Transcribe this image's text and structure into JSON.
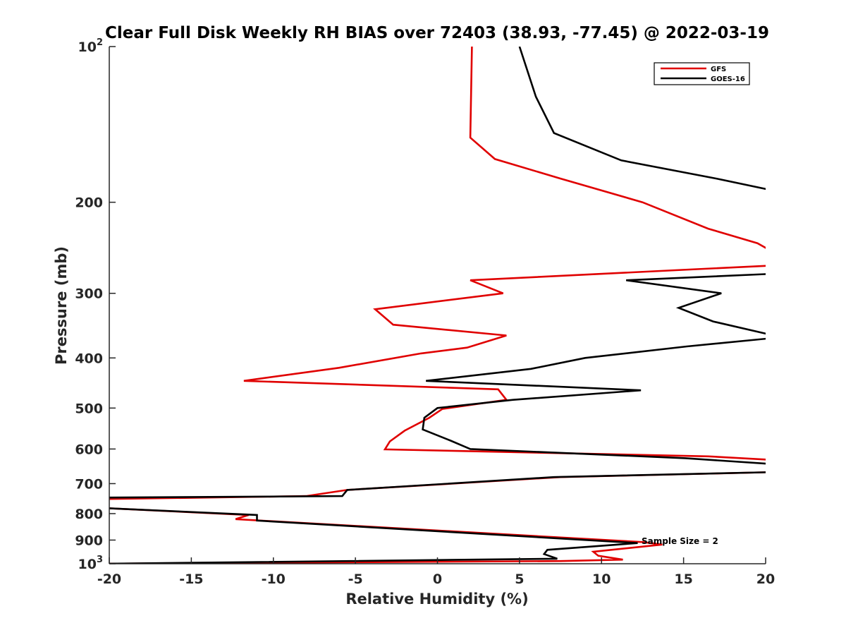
{
  "chart_data": {
    "type": "line",
    "title": "Clear Full Disk Weekly RH BIAS over 72403 (38.93, -77.45) @ 2022-03-19",
    "xlabel": "Relative Humidity (%)",
    "ylabel": "Pressure (mb)",
    "xlim": [
      -20,
      20
    ],
    "ylim": [
      100,
      1000
    ],
    "y_scale": "log",
    "y_reversed": true,
    "x_ticks": [
      "-20",
      "-15",
      "-10",
      "-5",
      "0",
      "5",
      "10",
      "15",
      "20"
    ],
    "y_ticks": [
      {
        "value": 100,
        "base": "10",
        "exp": "2"
      },
      {
        "value": 200,
        "label": "200"
      },
      {
        "value": 300,
        "label": "300"
      },
      {
        "value": 400,
        "label": "400"
      },
      {
        "value": 500,
        "label": "500"
      },
      {
        "value": 600,
        "label": "600"
      },
      {
        "value": 700,
        "label": "700"
      },
      {
        "value": 800,
        "label": "800"
      },
      {
        "value": 900,
        "label": "900"
      },
      {
        "value": 1000,
        "base": "10",
        "exp": "3"
      }
    ],
    "legend_position": "top-right",
    "annotation": "Sample Size = 2",
    "series": [
      {
        "name": "GFS",
        "color": "#e00000",
        "points": [
          {
            "x": 2.1,
            "p": 100
          },
          {
            "x": 2.0,
            "p": 150
          },
          {
            "x": 3.5,
            "p": 165
          },
          {
            "x": 7.5,
            "p": 180
          },
          {
            "x": 12.5,
            "p": 200
          },
          {
            "x": 16.5,
            "p": 225
          },
          {
            "x": 19.5,
            "p": 240
          },
          {
            "x": 20.5,
            "p": 250
          },
          {
            "x": 20.5,
            "p": 265
          },
          {
            "x": 2.0,
            "p": 283
          },
          {
            "x": 4.0,
            "p": 300
          },
          {
            "x": -3.8,
            "p": 322
          },
          {
            "x": -2.7,
            "p": 345
          },
          {
            "x": 4.2,
            "p": 362
          },
          {
            "x": 1.8,
            "p": 382
          },
          {
            "x": -1.0,
            "p": 392
          },
          {
            "x": -6.0,
            "p": 418
          },
          {
            "x": -11.8,
            "p": 443
          },
          {
            "x": 3.7,
            "p": 460
          },
          {
            "x": 4.2,
            "p": 482
          },
          {
            "x": 0.3,
            "p": 502
          },
          {
            "x": -0.5,
            "p": 522
          },
          {
            "x": -2.0,
            "p": 553
          },
          {
            "x": -2.9,
            "p": 580
          },
          {
            "x": -3.2,
            "p": 601
          },
          {
            "x": 16.5,
            "p": 620
          },
          {
            "x": 20.5,
            "p": 630
          },
          {
            "x": 20.5,
            "p": 665
          },
          {
            "x": 7.5,
            "p": 680
          },
          {
            "x": -5.5,
            "p": 720
          },
          {
            "x": -8.0,
            "p": 740
          },
          {
            "x": -20.5,
            "p": 750
          },
          {
            "x": -20.5,
            "p": 780
          },
          {
            "x": -11.5,
            "p": 805
          },
          {
            "x": -12.3,
            "p": 820
          },
          {
            "x": 12.5,
            "p": 908
          },
          {
            "x": 13.7,
            "p": 918
          },
          {
            "x": 9.5,
            "p": 948
          },
          {
            "x": 9.8,
            "p": 965
          },
          {
            "x": 11.3,
            "p": 982
          },
          {
            "x": 7.5,
            "p": 988
          },
          {
            "x": -20.5,
            "p": 1000
          }
        ]
      },
      {
        "name": "GOES-16",
        "color": "#000000",
        "points": [
          {
            "x": 5.0,
            "p": 100
          },
          {
            "x": 6.0,
            "p": 125
          },
          {
            "x": 7.1,
            "p": 147
          },
          {
            "x": 11.2,
            "p": 166
          },
          {
            "x": 17.0,
            "p": 180
          },
          {
            "x": 20.5,
            "p": 190
          },
          {
            "x": 20.5,
            "p": 275
          },
          {
            "x": 11.5,
            "p": 283
          },
          {
            "x": 17.3,
            "p": 300
          },
          {
            "x": 14.7,
            "p": 320
          },
          {
            "x": 16.8,
            "p": 340
          },
          {
            "x": 20.5,
            "p": 362
          },
          {
            "x": 20.5,
            "p": 366
          },
          {
            "x": 15.2,
            "p": 380
          },
          {
            "x": 9.0,
            "p": 400
          },
          {
            "x": 5.7,
            "p": 420
          },
          {
            "x": -0.7,
            "p": 443
          },
          {
            "x": 12.4,
            "p": 462
          },
          {
            "x": 4.6,
            "p": 482
          },
          {
            "x": 0.0,
            "p": 500
          },
          {
            "x": -0.8,
            "p": 522
          },
          {
            "x": -0.9,
            "p": 550
          },
          {
            "x": 0.8,
            "p": 578
          },
          {
            "x": 2.0,
            "p": 600
          },
          {
            "x": 15.1,
            "p": 625
          },
          {
            "x": 20.5,
            "p": 642
          },
          {
            "x": 20.5,
            "p": 665
          },
          {
            "x": 7.1,
            "p": 680
          },
          {
            "x": -5.5,
            "p": 720
          },
          {
            "x": -5.8,
            "p": 740
          },
          {
            "x": -20.5,
            "p": 745
          },
          {
            "x": -20.5,
            "p": 780
          },
          {
            "x": -11.0,
            "p": 805
          },
          {
            "x": -11.0,
            "p": 825
          },
          {
            "x": 12.2,
            "p": 912
          },
          {
            "x": 6.7,
            "p": 940
          },
          {
            "x": 6.5,
            "p": 958
          },
          {
            "x": 7.3,
            "p": 978
          },
          {
            "x": -20.5,
            "p": 1000
          }
        ]
      }
    ]
  }
}
